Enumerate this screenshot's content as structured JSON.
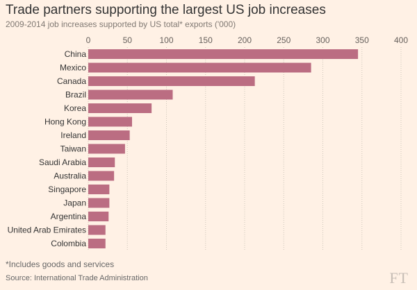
{
  "chart_data": {
    "type": "bar",
    "orientation": "horizontal",
    "title": "Trade partners supporting the largest US job increases",
    "subtitle": "2009-2014 job increases supported by US total* exports ('000)",
    "xlabel": "",
    "ylabel": "",
    "xlim": [
      0,
      400
    ],
    "xticks": [
      0,
      50,
      100,
      150,
      200,
      250,
      300,
      350,
      400
    ],
    "grid": true,
    "categories": [
      "China",
      "Mexico",
      "Canada",
      "Brazil",
      "Korea",
      "Hong Kong",
      "Ireland",
      "Taiwan",
      "Saudi Arabia",
      "Australia",
      "Singapore",
      "Japan",
      "Argentina",
      "United Arab Emirates",
      "Colombia"
    ],
    "values": [
      345,
      285,
      213,
      108,
      81,
      56,
      53,
      47,
      34,
      33,
      27,
      27,
      26,
      22,
      22
    ],
    "bar_color": "#bb6d82"
  },
  "footnote": "*Includes goods and services",
  "source": "Source: International Trade Administration",
  "logo": "FT",
  "colors": {
    "background": "#fff1e5",
    "gridline": "#cec6b9",
    "bar": "#bb6d82"
  }
}
